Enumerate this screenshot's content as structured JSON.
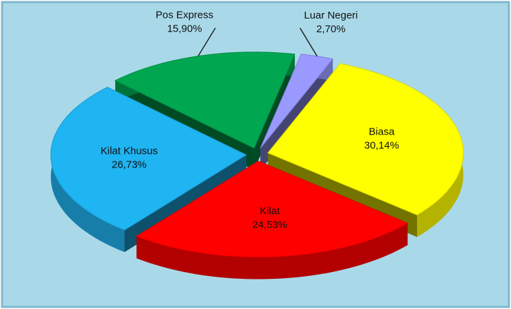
{
  "chart_data": {
    "type": "pie",
    "categories": [
      "Luar Negeri",
      "Biasa",
      "Kilat",
      "Kilat Khusus",
      "Pos Express"
    ],
    "values": [
      2.7,
      30.14,
      24.53,
      26.73,
      15.9
    ],
    "value_labels": [
      "2,70%",
      "30,14%",
      "24,53%",
      "26,73%",
      "15,90%"
    ],
    "colors": [
      "#9999ff",
      "#ffff00",
      "#ff0000",
      "#1fb4f2",
      "#00a650"
    ]
  }
}
